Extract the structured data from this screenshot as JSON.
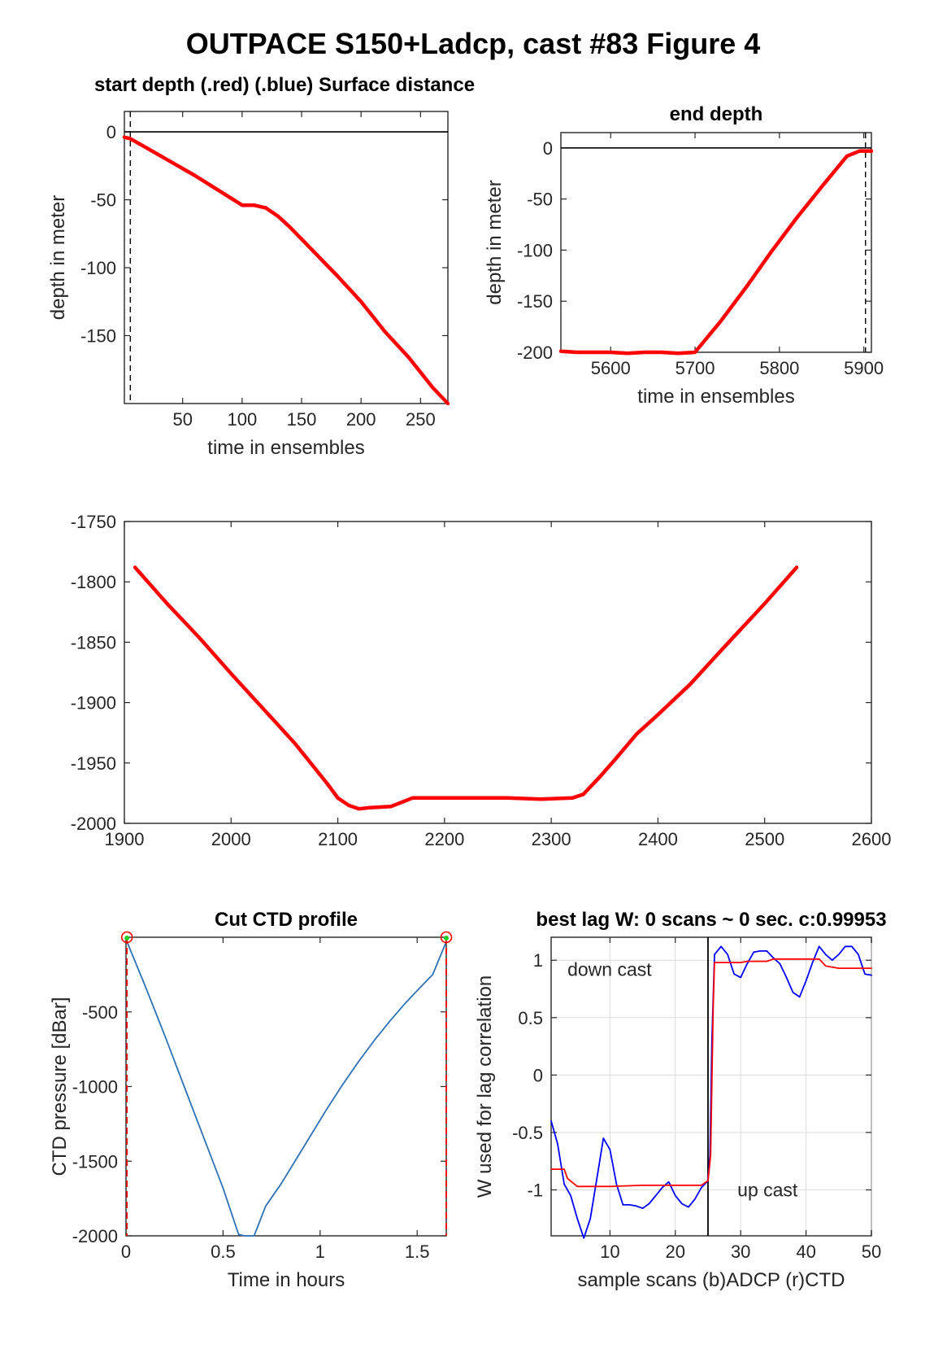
{
  "figure_title": "OUTPACE S150+Ladcp, cast #83   Figure 4",
  "chart_data": [
    {
      "id": "start-depth",
      "type": "line",
      "title": "start depth (.red) (.blue) Surface distance",
      "xlabel": "time in ensembles",
      "ylabel": "depth in meter",
      "xlim": [
        1,
        273
      ],
      "ylim": [
        -200,
        15
      ],
      "xticks": [
        50,
        100,
        150,
        200,
        250
      ],
      "yticks": [
        0,
        -50,
        -100,
        -150
      ],
      "hline": 0,
      "vline": 6,
      "series": [
        {
          "color": "#ff0000",
          "x": [
            1,
            6,
            20,
            40,
            60,
            80,
            100,
            110,
            120,
            130,
            140,
            160,
            180,
            200,
            220,
            240,
            260,
            273
          ],
          "y": [
            -4,
            -5,
            -12,
            -22,
            -32,
            -43,
            -54,
            -54,
            -56,
            -62,
            -70,
            -88,
            -106,
            -125,
            -147,
            -166,
            -188,
            -200
          ]
        }
      ]
    },
    {
      "id": "end-depth",
      "type": "line",
      "title": "end depth",
      "xlabel": "time in ensembles",
      "ylabel": "depth in meter",
      "xlim": [
        5541,
        5909
      ],
      "ylim": [
        -200,
        15
      ],
      "xticks": [
        5600,
        5700,
        5800,
        5900
      ],
      "yticks": [
        0,
        -50,
        -100,
        -150,
        -200
      ],
      "hline": 0,
      "vline": 5902,
      "series": [
        {
          "color": "#ff0000",
          "x": [
            5541,
            5560,
            5600,
            5620,
            5640,
            5660,
            5680,
            5700,
            5730,
            5760,
            5790,
            5820,
            5850,
            5880,
            5895,
            5909
          ],
          "y": [
            -199,
            -200,
            -200,
            -201,
            -200,
            -200,
            -201,
            -200,
            -170,
            -137,
            -102,
            -69,
            -38,
            -8,
            -3,
            -3
          ]
        }
      ]
    },
    {
      "id": "bottom-section",
      "type": "line",
      "title": "",
      "xlabel": "",
      "ylabel": "",
      "xlim": [
        1900,
        2600
      ],
      "ylim": [
        -2000,
        -1750
      ],
      "xticks": [
        1900,
        2000,
        2100,
        2200,
        2300,
        2400,
        2500,
        2600
      ],
      "yticks": [
        -1750,
        -1800,
        -1850,
        -1900,
        -1950,
        -2000
      ],
      "series": [
        {
          "color": "#ff0000",
          "x": [
            1910,
            1940,
            1970,
            2000,
            2030,
            2060,
            2090,
            2100,
            2110,
            2120,
            2130,
            2150,
            2170,
            2200,
            2230,
            2260,
            2290,
            2320,
            2330,
            2345,
            2360,
            2380,
            2400,
            2430,
            2460,
            2500,
            2530
          ],
          "y": [
            -1788,
            -1818,
            -1846,
            -1876,
            -1905,
            -1934,
            -1967,
            -1979,
            -1985,
            -1988,
            -1987,
            -1986,
            -1979,
            -1979,
            -1979,
            -1979,
            -1980,
            -1979,
            -1976,
            -1962,
            -1947,
            -1926,
            -1910,
            -1885,
            -1856,
            -1818,
            -1788
          ]
        }
      ]
    },
    {
      "id": "cut-ctd-profile",
      "type": "line",
      "title": "Cut CTD profile",
      "xlabel": "Time in hours",
      "ylabel": "CTD pressure [dBar]",
      "xlim": [
        0,
        1.65
      ],
      "ylim": [
        -2000,
        0
      ],
      "xticks": [
        0,
        0.5,
        1,
        1.5
      ],
      "yticks": [
        -500,
        -1000,
        -1500,
        -2000
      ],
      "cut_markers_x": [
        0.005,
        1.65
      ],
      "series": [
        {
          "color": "#2f72b5",
          "x": [
            0.005,
            0.1,
            0.2,
            0.3,
            0.4,
            0.5,
            0.58,
            0.61,
            0.66,
            0.72,
            0.8,
            0.88,
            0.96,
            1.04,
            1.12,
            1.2,
            1.28,
            1.36,
            1.44,
            1.52,
            1.58,
            1.65
          ],
          "y": [
            -30,
            -330,
            -660,
            -1000,
            -1340,
            -1680,
            -1990,
            -2000,
            -2000,
            -1800,
            -1650,
            -1480,
            -1310,
            -1140,
            -980,
            -830,
            -690,
            -560,
            -440,
            -330,
            -250,
            -30
          ]
        }
      ]
    },
    {
      "id": "best-lag",
      "type": "line",
      "title": "best lag W: 0 scans ~ 0 sec.  c:0.99953",
      "xlabel": "sample scans (b)ADCP (r)CTD",
      "ylabel": "W used for lag correlation",
      "xlim": [
        1,
        50
      ],
      "ylim": [
        -1.4,
        1.2
      ],
      "xticks": [
        10,
        20,
        30,
        40,
        50
      ],
      "yticks": [
        1,
        0.5,
        0,
        -0.5,
        -1
      ],
      "grid": true,
      "vline": 25,
      "annotations": [
        {
          "text": "down cast",
          "x": 3.5,
          "y": 0.92
        },
        {
          "text": "up cast",
          "x": 29.5,
          "y": -1.0
        }
      ],
      "series": [
        {
          "color": "#0000ff",
          "x": [
            1,
            2,
            3,
            4,
            5,
            6,
            7,
            8,
            9,
            10,
            11,
            12,
            13,
            14,
            15,
            16,
            17,
            18,
            19,
            20,
            21,
            22,
            23,
            24,
            25,
            25.3,
            25.6,
            26,
            27,
            28,
            29,
            30,
            31,
            32,
            33,
            34,
            35,
            36,
            37,
            38,
            39,
            40,
            41,
            42,
            43,
            44,
            45,
            46,
            47,
            48,
            49,
            50
          ],
          "y": [
            -0.4,
            -0.6,
            -0.95,
            -1.05,
            -1.25,
            -1.42,
            -1.25,
            -0.9,
            -0.55,
            -0.65,
            -0.95,
            -1.13,
            -1.13,
            -1.14,
            -1.16,
            -1.12,
            -1.05,
            -0.98,
            -0.93,
            -1.05,
            -1.12,
            -1.15,
            -1.08,
            -0.98,
            -0.92,
            -0.7,
            0.3,
            1.05,
            1.12,
            1.05,
            0.88,
            0.85,
            0.97,
            1.07,
            1.08,
            1.08,
            1.02,
            0.97,
            0.85,
            0.72,
            0.68,
            0.82,
            0.98,
            1.12,
            1.05,
            1.0,
            1.05,
            1.12,
            1.12,
            1.05,
            0.88,
            0.87
          ]
        },
        {
          "color": "#ff0000",
          "x": [
            1,
            3,
            3.5,
            5,
            10,
            15,
            20,
            24,
            25,
            25.4,
            25.8,
            26,
            30,
            31,
            34,
            35,
            40,
            42,
            43,
            45,
            50
          ],
          "y": [
            -0.82,
            -0.82,
            -0.9,
            -0.97,
            -0.97,
            -0.96,
            -0.96,
            -0.96,
            -0.92,
            -0.7,
            0.6,
            0.98,
            0.98,
            0.99,
            0.99,
            1.01,
            1.01,
            1.01,
            0.95,
            0.93,
            0.93
          ]
        }
      ]
    }
  ]
}
